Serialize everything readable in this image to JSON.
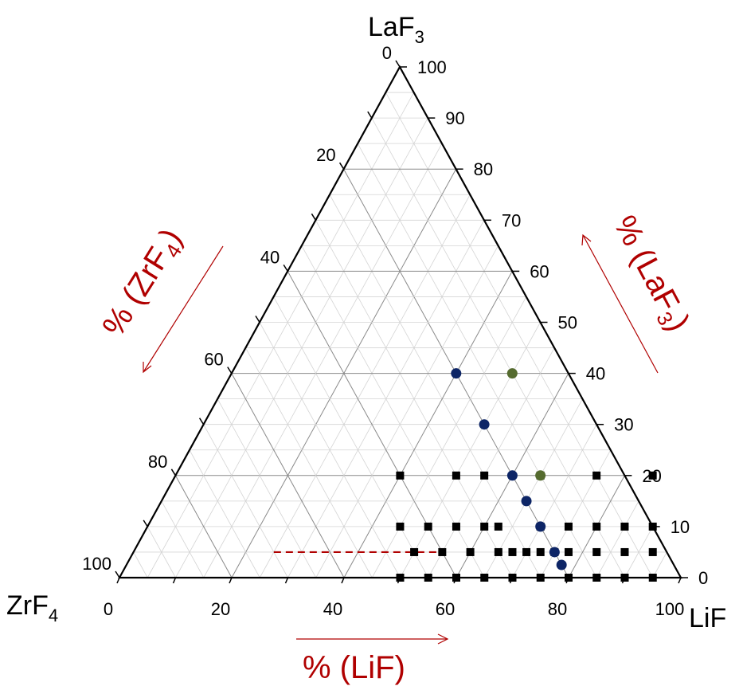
{
  "chart_data": {
    "type": "scatter",
    "subtype": "ternary",
    "title": "",
    "vertices": {
      "left": {
        "main": "ZrF",
        "sub": "4"
      },
      "right": {
        "main": "LiF",
        "sub": ""
      },
      "top": {
        "main": "LaF",
        "sub": "3"
      }
    },
    "axis_titles": {
      "bottom": {
        "main": "% (LiF)",
        "sub": ""
      },
      "left": {
        "main": "% (ZrF",
        "sub": "4",
        "end": ")"
      },
      "right": {
        "main": "% (LaF",
        "sub": "3",
        "end": ")"
      }
    },
    "ticks": {
      "bottom": [
        "0",
        "20",
        "40",
        "60",
        "80",
        "100"
      ],
      "left": [
        "0",
        "20",
        "40",
        "60",
        "80",
        "100"
      ],
      "right": [
        "0",
        "10",
        "20",
        "30",
        "40",
        "50",
        "60",
        "70",
        "80",
        "90",
        "100"
      ]
    },
    "grid": true,
    "colors": {
      "axis": "#000000",
      "grid_minor": "#d4d4d4",
      "grid_major": "#8a8a8a",
      "title_red": "#b00000",
      "navy": "#0d2566",
      "green": "#556b2f",
      "square": "#000000",
      "dashed": "#b00000"
    },
    "series": [
      {
        "marker": "square",
        "color": "#000000",
        "points": [
          {
            "lif": 50,
            "laf3": 0
          },
          {
            "lif": 55,
            "laf3": 0
          },
          {
            "lif": 60,
            "laf3": 0
          },
          {
            "lif": 65,
            "laf3": 0
          },
          {
            "lif": 70,
            "laf3": 0
          },
          {
            "lif": 75,
            "laf3": 0
          },
          {
            "lif": 80,
            "laf3": 0
          },
          {
            "lif": 85,
            "laf3": 0
          },
          {
            "lif": 90,
            "laf3": 0
          },
          {
            "lif": 95,
            "laf3": 0
          },
          {
            "lif": 50,
            "laf3": 5
          },
          {
            "lif": 55,
            "laf3": 5
          },
          {
            "lif": 60,
            "laf3": 5
          },
          {
            "lif": 65,
            "laf3": 5
          },
          {
            "lif": 67.5,
            "laf3": 5
          },
          {
            "lif": 70,
            "laf3": 5
          },
          {
            "lif": 72.5,
            "laf3": 5
          },
          {
            "lif": 75,
            "laf3": 5
          },
          {
            "lif": 77.5,
            "laf3": 5
          },
          {
            "lif": 82.5,
            "laf3": 5
          },
          {
            "lif": 87.5,
            "laf3": 5
          },
          {
            "lif": 92.5,
            "laf3": 5
          },
          {
            "lif": 45,
            "laf3": 10
          },
          {
            "lif": 50,
            "laf3": 10
          },
          {
            "lif": 55,
            "laf3": 10
          },
          {
            "lif": 60,
            "laf3": 10
          },
          {
            "lif": 62.5,
            "laf3": 10
          },
          {
            "lif": 70,
            "laf3": 10
          },
          {
            "lif": 75,
            "laf3": 10
          },
          {
            "lif": 80,
            "laf3": 10
          },
          {
            "lif": 85,
            "laf3": 10
          },
          {
            "lif": 90,
            "laf3": 10
          },
          {
            "lif": 40,
            "laf3": 20
          },
          {
            "lif": 50,
            "laf3": 20
          },
          {
            "lif": 55,
            "laf3": 20
          },
          {
            "lif": 65,
            "laf3": 20
          },
          {
            "lif": 75,
            "laf3": 20
          },
          {
            "lif": 85,
            "laf3": 20
          }
        ]
      },
      {
        "marker": "circle",
        "color": "#0d2566",
        "points": [
          {
            "lif": 40,
            "laf3": 40
          },
          {
            "lif": 50,
            "laf3": 30
          },
          {
            "lif": 60,
            "laf3": 20
          },
          {
            "lif": 65,
            "laf3": 15
          },
          {
            "lif": 70,
            "laf3": 10
          },
          {
            "lif": 75,
            "laf3": 5
          },
          {
            "lif": 77.5,
            "laf3": 2.5
          }
        ]
      },
      {
        "marker": "circle",
        "color": "#556b2f",
        "points": [
          {
            "lif": 50,
            "laf3": 40
          },
          {
            "lif": 65,
            "laf3": 20
          }
        ]
      }
    ],
    "annotations": [
      {
        "type": "dashed-line",
        "laf3": 5,
        "lif_from": 25,
        "lif_to": 55
      }
    ]
  }
}
